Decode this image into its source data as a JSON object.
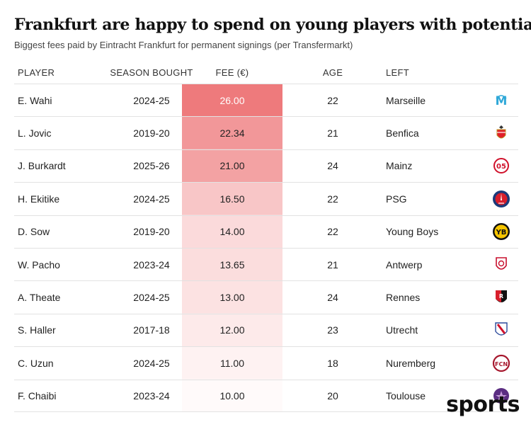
{
  "title": "Frankfurt are happy to spend on young players with potential",
  "subtitle": "Biggest fees paid by Eintracht Frankfurt for permanent signings (per Transfermarkt)",
  "columns": {
    "player": "PLAYER",
    "season": "SEASON BOUGHT",
    "fee": "FEE (€)",
    "age": "AGE",
    "left": "LEFT"
  },
  "watermark": "sports",
  "colors": {
    "heat_max": "#ee7a7c",
    "heat_min": "#fffafa",
    "text_dark": "#222222",
    "text_light": "#ffffff"
  },
  "chart_data": {
    "type": "table",
    "title": "Frankfurt are happy to spend on young players with potential",
    "subtitle": "Biggest fees paid by Eintracht Frankfurt for permanent signings (per Transfermarkt)",
    "columns": [
      "PLAYER",
      "SEASON BOUGHT",
      "FEE (€)",
      "AGE",
      "LEFT"
    ],
    "rows": [
      {
        "player": "E. Wahi",
        "season": "2024-25",
        "fee": "26.00",
        "fee_value": 26.0,
        "age": "22",
        "left": "Marseille",
        "logo": "marseille-crest-icon"
      },
      {
        "player": "L. Jovic",
        "season": "2019-20",
        "fee": "22.34",
        "fee_value": 22.34,
        "age": "21",
        "left": "Benfica",
        "logo": "benfica-crest-icon"
      },
      {
        "player": "J. Burkardt",
        "season": "2025-26",
        "fee": "21.00",
        "fee_value": 21.0,
        "age": "24",
        "left": "Mainz",
        "logo": "mainz-crest-icon"
      },
      {
        "player": "H. Ekitike",
        "season": "2024-25",
        "fee": "16.50",
        "fee_value": 16.5,
        "age": "22",
        "left": "PSG",
        "logo": "psg-crest-icon"
      },
      {
        "player": "D. Sow",
        "season": "2019-20",
        "fee": "14.00",
        "fee_value": 14.0,
        "age": "22",
        "left": "Young Boys",
        "logo": "young-boys-crest-icon"
      },
      {
        "player": "W. Pacho",
        "season": "2023-24",
        "fee": "13.65",
        "fee_value": 13.65,
        "age": "21",
        "left": "Antwerp",
        "logo": "antwerp-crest-icon"
      },
      {
        "player": "A. Theate",
        "season": "2024-25",
        "fee": "13.00",
        "fee_value": 13.0,
        "age": "24",
        "left": "Rennes",
        "logo": "rennes-crest-icon"
      },
      {
        "player": "S. Haller",
        "season": "2017-18",
        "fee": "12.00",
        "fee_value": 12.0,
        "age": "23",
        "left": "Utrecht",
        "logo": "utrecht-crest-icon"
      },
      {
        "player": "C. Uzun",
        "season": "2024-25",
        "fee": "11.00",
        "fee_value": 11.0,
        "age": "18",
        "left": "Nuremberg",
        "logo": "nuremberg-crest-icon"
      },
      {
        "player": "F. Chaibi",
        "season": "2023-24",
        "fee": "10.00",
        "fee_value": 10.0,
        "age": "20",
        "left": "Toulouse",
        "logo": "toulouse-crest-icon"
      }
    ]
  }
}
